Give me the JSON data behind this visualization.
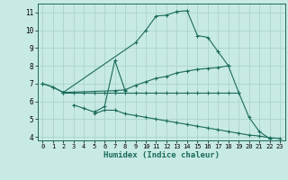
{
  "xlabel": "Humidex (Indice chaleur)",
  "ylabel": "",
  "xlim": [
    -0.5,
    23.5
  ],
  "ylim": [
    3.8,
    11.5
  ],
  "yticks": [
    4,
    5,
    6,
    7,
    8,
    9,
    10,
    11
  ],
  "xticks": [
    0,
    1,
    2,
    3,
    4,
    5,
    6,
    7,
    8,
    9,
    10,
    11,
    12,
    13,
    14,
    15,
    16,
    17,
    18,
    19,
    20,
    21,
    22,
    23
  ],
  "background_color": "#c8eae4",
  "grid_color": "#a8d4cc",
  "line_color": "#1a6b5a",
  "lines": [
    {
      "x": [
        0,
        1,
        2,
        9,
        10,
        11,
        12,
        13,
        14,
        15,
        16,
        17,
        18
      ],
      "y": [
        7.0,
        6.8,
        6.5,
        9.3,
        10.0,
        10.8,
        10.85,
        11.05,
        11.1,
        9.7,
        9.6,
        8.8,
        8.0
      ]
    },
    {
      "x": [
        0,
        1,
        2,
        7,
        8,
        9,
        10,
        11,
        12,
        13,
        14,
        15,
        16,
        17,
        18,
        19,
        20,
        21,
        22
      ],
      "y": [
        7.0,
        6.8,
        6.5,
        6.6,
        6.65,
        6.9,
        7.1,
        7.3,
        7.4,
        7.6,
        7.7,
        7.8,
        7.85,
        7.9,
        8.0,
        6.5,
        5.1,
        4.3,
        3.9
      ]
    },
    {
      "x": [
        2,
        3,
        4,
        5,
        6,
        7,
        8,
        9,
        10,
        11,
        12,
        13,
        14,
        15,
        16,
        17,
        18,
        19
      ],
      "y": [
        6.5,
        6.5,
        6.5,
        6.5,
        6.5,
        6.5,
        6.5,
        6.5,
        6.5,
        6.5,
        6.5,
        6.5,
        6.5,
        6.5,
        6.5,
        6.5,
        6.5,
        6.5
      ]
    },
    {
      "x": [
        3,
        4,
        5,
        6,
        7,
        8
      ],
      "y": [
        5.8,
        5.6,
        5.4,
        5.7,
        8.3,
        6.6
      ]
    },
    {
      "x": [
        5,
        6,
        7,
        8,
        9,
        10,
        11,
        12,
        13,
        14,
        15,
        16,
        17,
        18,
        19,
        20,
        21,
        22,
        23
      ],
      "y": [
        5.3,
        5.5,
        5.5,
        5.3,
        5.2,
        5.1,
        5.0,
        4.9,
        4.8,
        4.7,
        4.6,
        4.5,
        4.4,
        4.3,
        4.2,
        4.1,
        4.05,
        3.95,
        3.9
      ]
    }
  ]
}
